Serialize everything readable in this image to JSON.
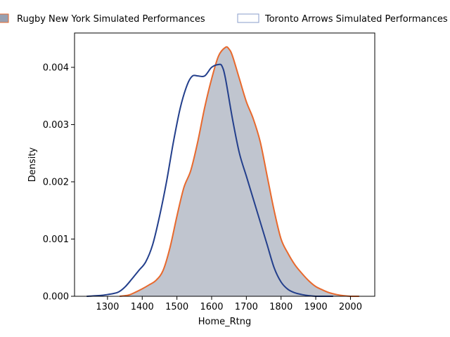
{
  "chart_data": {
    "type": "area",
    "title": "",
    "xlabel": "Home_Rtng",
    "ylabel": "Density",
    "xlim": [
      1205,
      2070
    ],
    "ylim": [
      0,
      0.0046
    ],
    "x_ticks": [
      1300,
      1400,
      1500,
      1600,
      1700,
      1800,
      1900,
      2000
    ],
    "x_tick_labels": [
      "1300",
      "1400",
      "1500",
      "1600",
      "1700",
      "1800",
      "1900",
      "2000"
    ],
    "y_ticks": [
      0,
      0.001,
      0.002,
      0.003,
      0.004
    ],
    "y_tick_labels": [
      "0.000",
      "0.001",
      "0.002",
      "0.003",
      "0.004"
    ],
    "grid": false,
    "legend_position": "top",
    "series": [
      {
        "name": "Rugby New York Simulated Performances",
        "color": "#e8692d",
        "fill": "#8c96a8",
        "filled": true,
        "x": [
          1335,
          1360,
          1380,
          1400,
          1420,
          1440,
          1460,
          1480,
          1500,
          1520,
          1540,
          1560,
          1580,
          1600,
          1620,
          1640,
          1650,
          1660,
          1680,
          1700,
          1720,
          1740,
          1760,
          1780,
          1800,
          1820,
          1840,
          1860,
          1880,
          1900,
          1920,
          1940,
          1960,
          1980,
          2000,
          2025
        ],
        "y": [
          0.0,
          2e-05,
          7e-05,
          0.00013,
          0.0002,
          0.00028,
          0.00045,
          0.00085,
          0.0014,
          0.0019,
          0.0022,
          0.0027,
          0.0033,
          0.0038,
          0.0042,
          0.00435,
          0.00432,
          0.0042,
          0.0038,
          0.0034,
          0.0031,
          0.0027,
          0.0021,
          0.0015,
          0.001,
          0.00075,
          0.00055,
          0.0004,
          0.00027,
          0.00017,
          0.00011,
          6e-05,
          3e-05,
          1e-05,
          0.0,
          0.0
        ]
      },
      {
        "name": "Toronto Arrows Simulated Performances",
        "color": "#233f8c",
        "fill": "none",
        "filled": false,
        "x": [
          1240,
          1270,
          1300,
          1330,
          1350,
          1370,
          1390,
          1410,
          1430,
          1450,
          1470,
          1490,
          1510,
          1530,
          1545,
          1560,
          1580,
          1600,
          1620,
          1630,
          1640,
          1660,
          1680,
          1700,
          1720,
          1740,
          1760,
          1780,
          1800,
          1820,
          1840,
          1860,
          1880,
          1900,
          1920,
          1950
        ],
        "y": [
          0.0,
          1e-05,
          3e-05,
          7e-05,
          0.00016,
          0.0003,
          0.00045,
          0.0006,
          0.0009,
          0.0014,
          0.002,
          0.0027,
          0.0033,
          0.0037,
          0.00385,
          0.00385,
          0.00385,
          0.004,
          0.00405,
          0.00402,
          0.0038,
          0.0031,
          0.0025,
          0.0021,
          0.0017,
          0.0013,
          0.0009,
          0.0005,
          0.00025,
          0.00012,
          6e-05,
          3e-05,
          1e-05,
          0.0,
          0.0,
          0.0
        ]
      }
    ]
  }
}
